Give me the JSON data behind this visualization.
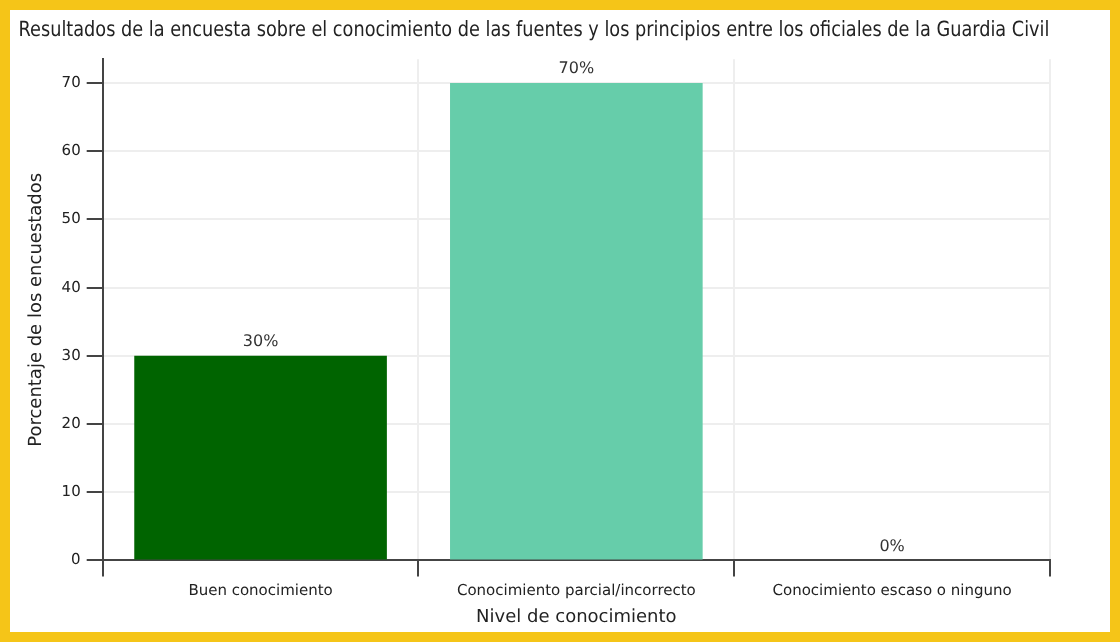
{
  "chart_data": {
    "type": "bar",
    "title": "Resultados de la encuesta sobre el conocimiento de las fuentes y los principios entre los oficiales de la Guardia Civil",
    "xlabel": "Nivel de conocimiento",
    "ylabel": "Porcentaje de los encuestados",
    "categories": [
      "Buen conocimiento",
      "Conocimiento parcial/incorrecto",
      "Conocimiento escaso o ninguno"
    ],
    "values": [
      30,
      70,
      0
    ],
    "colors": [
      "#006400",
      "#66cdaa",
      "#ffd700"
    ],
    "value_labels": [
      "30%",
      "70%",
      "0%"
    ],
    "ylim": [
      0,
      73.5
    ],
    "yticks": [
      0,
      10,
      20,
      30,
      40,
      50,
      60,
      70
    ],
    "grid": true,
    "legend": false
  }
}
